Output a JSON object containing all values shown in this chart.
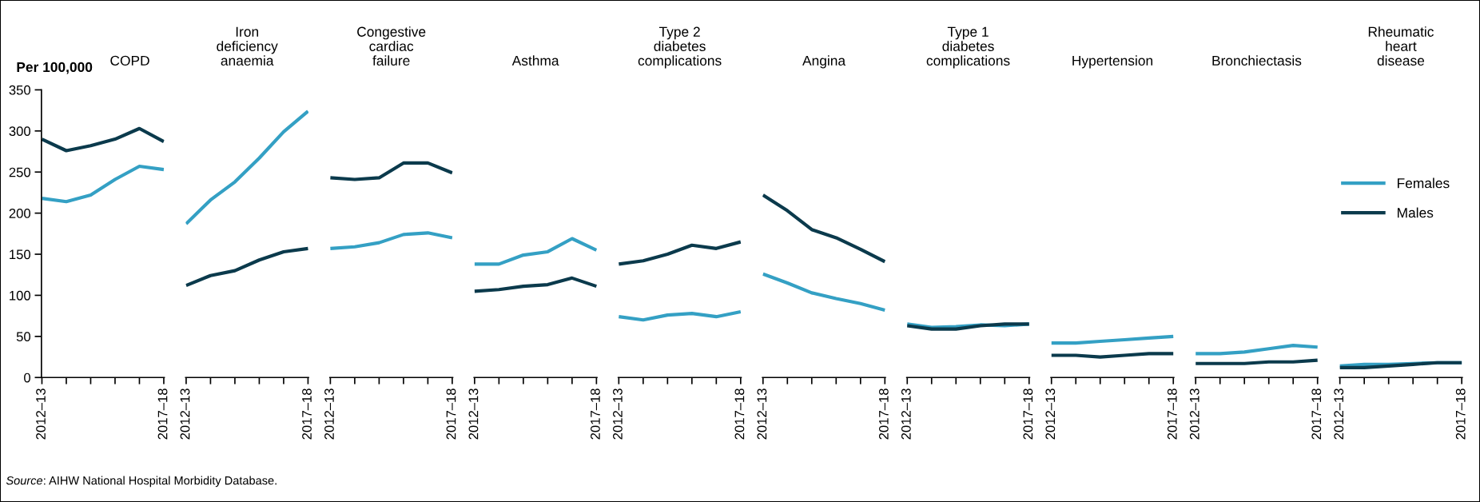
{
  "chart_data": [
    {
      "type": "line",
      "title": "COPD",
      "ylabel": "Per 100,000",
      "categories": [
        "2012–13",
        null,
        null,
        null,
        null,
        "2017–18"
      ],
      "ylim": [
        0,
        350
      ],
      "yticks": [
        0,
        50,
        100,
        150,
        200,
        250,
        300,
        350
      ],
      "annotations": [
        "Source: AIHW National Hospital Morbidity Database."
      ],
      "series": [
        {
          "color": "#34a0c4",
          "values": [
            218,
            214,
            222,
            241,
            257,
            253
          ]
        },
        {
          "color": "#0b3a4c",
          "values": [
            290,
            276,
            282,
            290,
            303,
            287
          ]
        }
      ]
    },
    {
      "type": "line",
      "title": "Iron\ndeficiency\nanaemia",
      "categories": [
        "2012–13",
        null,
        null,
        null,
        null,
        "2017–18"
      ],
      "ylim": [
        0,
        350
      ],
      "tick_labels": "x",
      "series": [
        {
          "color": "#34a0c4",
          "values": [
            187,
            216,
            238,
            267,
            299,
            324
          ]
        },
        {
          "color": "#0b3a4c",
          "values": [
            112,
            124,
            130,
            143,
            153,
            157
          ]
        }
      ]
    },
    {
      "type": "line",
      "title": "Congestive\ncardiac\nfailure",
      "categories": [
        "2012–13",
        null,
        null,
        null,
        null,
        "2017–18"
      ],
      "ylim": [
        0,
        350
      ],
      "tick_labels": "x",
      "series": [
        {
          "color": "#34a0c4",
          "values": [
            157,
            159,
            164,
            174,
            176,
            170
          ]
        },
        {
          "color": "#0b3a4c",
          "values": [
            243,
            241,
            243,
            261,
            261,
            249
          ]
        }
      ]
    },
    {
      "type": "line",
      "title": "Asthma",
      "categories": [
        "2012–13",
        null,
        null,
        null,
        null,
        "2017–18"
      ],
      "ylim": [
        0,
        350
      ],
      "tick_labels": "x",
      "series": [
        {
          "color": "#34a0c4",
          "values": [
            138,
            138,
            149,
            153,
            169,
            155
          ]
        },
        {
          "color": "#0b3a4c",
          "values": [
            105,
            107,
            111,
            113,
            121,
            111
          ]
        }
      ]
    },
    {
      "type": "line",
      "title": "Type 2\ndiabetes\ncomplications",
      "categories": [
        "2012–13",
        null,
        null,
        null,
        null,
        "2017–18"
      ],
      "ylim": [
        0,
        350
      ],
      "tick_labels": "x",
      "series": [
        {
          "color": "#34a0c4",
          "values": [
            74,
            70,
            76,
            78,
            74,
            80
          ]
        },
        {
          "color": "#0b3a4c",
          "values": [
            138,
            142,
            150,
            161,
            157,
            165
          ]
        }
      ]
    },
    {
      "type": "line",
      "title": "Angina",
      "categories": [
        "2012–13",
        null,
        null,
        null,
        null,
        "2017–18"
      ],
      "ylim": [
        0,
        350
      ],
      "tick_labels": "x",
      "series": [
        {
          "color": "#34a0c4",
          "values": [
            126,
            115,
            103,
            96,
            90,
            82
          ]
        },
        {
          "color": "#0b3a4c",
          "values": [
            222,
            203,
            180,
            170,
            156,
            141
          ]
        }
      ]
    },
    {
      "type": "line",
      "title": "Type 1\ndiabetes\ncomplications",
      "categories": [
        "2012–13",
        null,
        null,
        null,
        null,
        "2017–18"
      ],
      "ylim": [
        0,
        350
      ],
      "tick_labels": "x",
      "series": [
        {
          "color": "#34a0c4",
          "values": [
            65,
            61,
            62,
            64,
            63,
            65
          ]
        },
        {
          "color": "#0b3a4c",
          "values": [
            63,
            59,
            59,
            63,
            65,
            65
          ]
        }
      ]
    },
    {
      "type": "line",
      "title": "Hypertension",
      "categories": [
        "2012–13",
        null,
        null,
        null,
        null,
        "2017–18"
      ],
      "ylim": [
        0,
        350
      ],
      "tick_labels": "x",
      "series": [
        {
          "color": "#34a0c4",
          "values": [
            42,
            42,
            44,
            46,
            48,
            50
          ]
        },
        {
          "color": "#0b3a4c",
          "values": [
            27,
            27,
            25,
            27,
            29,
            29
          ]
        }
      ]
    },
    {
      "type": "line",
      "title": "Bronchiectasis",
      "categories": [
        "2012–13",
        null,
        null,
        null,
        null,
        "2017–18"
      ],
      "ylim": [
        0,
        350
      ],
      "tick_labels": "x",
      "series": [
        {
          "color": "#34a0c4",
          "values": [
            29,
            29,
            31,
            35,
            39,
            37
          ]
        },
        {
          "color": "#0b3a4c",
          "values": [
            17,
            17,
            17,
            19,
            19,
            21
          ]
        }
      ]
    },
    {
      "type": "line",
      "title": "Rheumatic\nheart\ndisease",
      "categories": [
        "2012–13",
        null,
        null,
        null,
        null,
        "2017–18"
      ],
      "ylim": [
        0,
        350
      ],
      "tick_labels": "x",
      "legend": "right",
      "series": [
        {
          "name": "Females",
          "color": "#34a0c4",
          "values": [
            14,
            16,
            16,
            17,
            18,
            18
          ]
        },
        {
          "name": "Males",
          "color": "#0b3a4c",
          "values": [
            12,
            12,
            14,
            16,
            18,
            18
          ]
        }
      ]
    }
  ]
}
